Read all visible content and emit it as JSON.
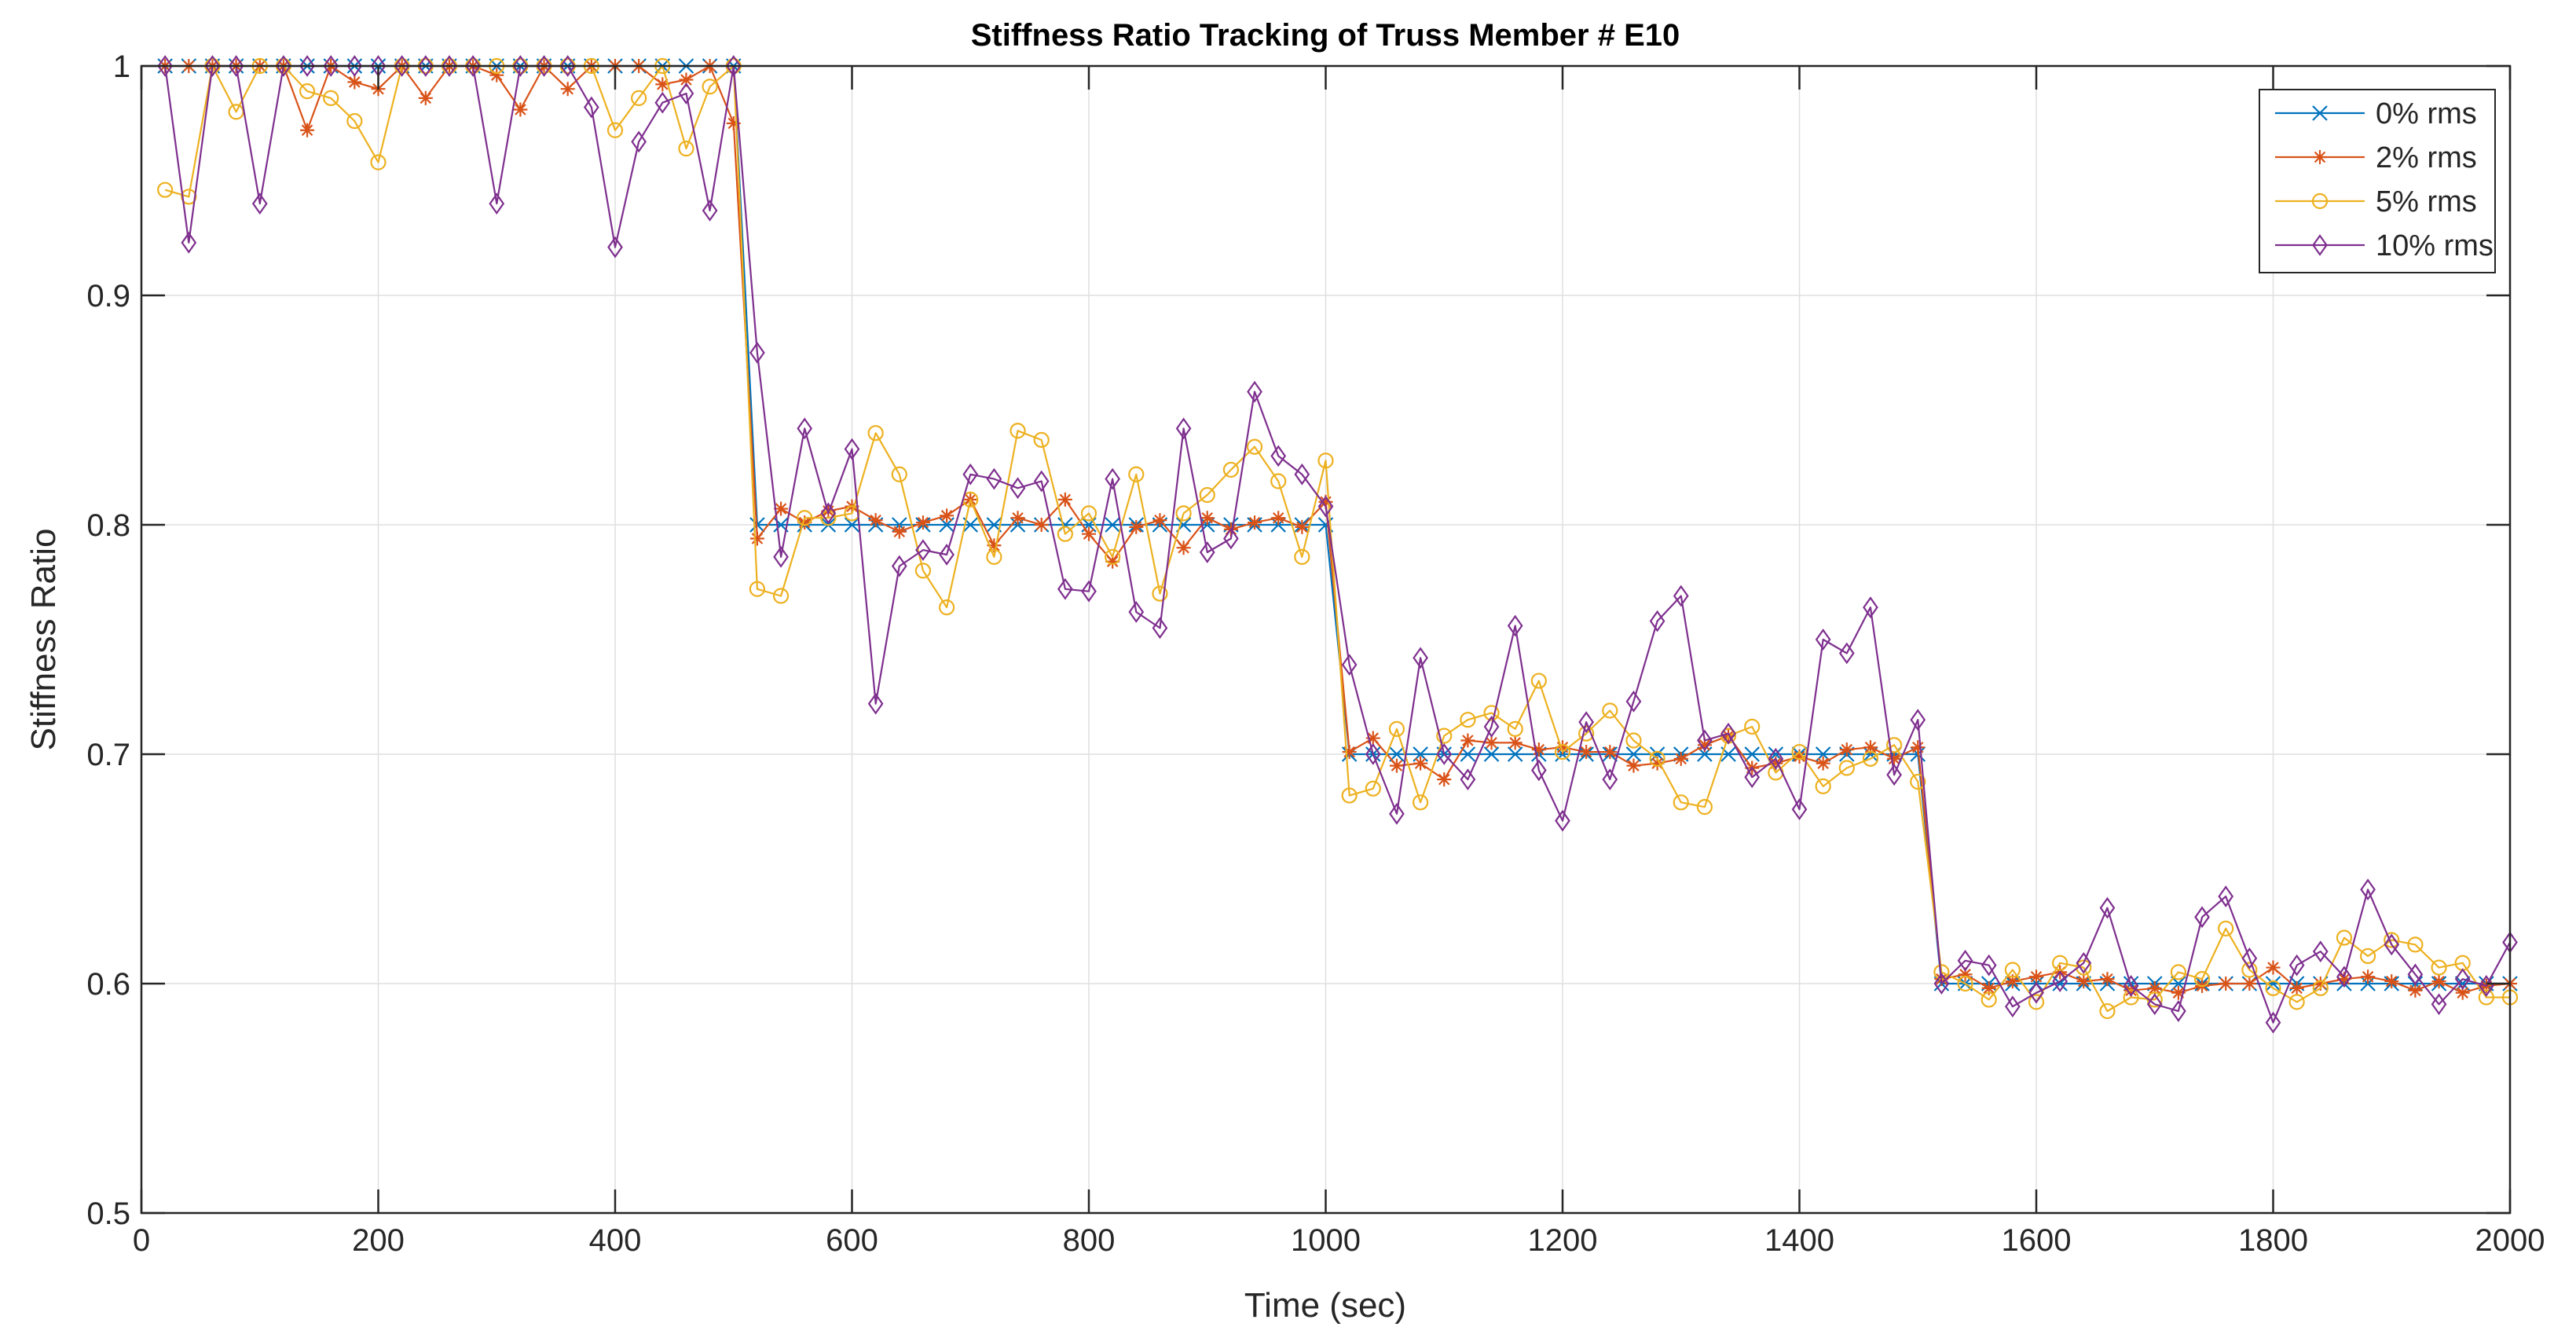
{
  "chart_data": {
    "type": "line",
    "title": "Stiffness Ratio Tracking of Truss Member # E10",
    "xlabel": "Time (sec)",
    "ylabel": "Stiffness Ratio",
    "xlim": [
      0,
      2000
    ],
    "ylim": [
      0.5,
      1.0
    ],
    "xticks": [
      0,
      200,
      400,
      600,
      800,
      1000,
      1200,
      1400,
      1600,
      1800,
      2000
    ],
    "yticks": [
      0.5,
      0.6,
      0.7,
      0.8,
      0.9,
      1.0
    ],
    "xtick_labels": [
      "0",
      "200",
      "400",
      "600",
      "800",
      "1000",
      "1200",
      "1400",
      "1600",
      "1800",
      "2000"
    ],
    "ytick_labels": [
      "0.5",
      "0.6",
      "0.7",
      "0.8",
      "0.9",
      "1"
    ],
    "grid": true,
    "legend_position": "top-right",
    "x": [
      20,
      40,
      60,
      80,
      100,
      120,
      140,
      160,
      180,
      200,
      220,
      240,
      260,
      280,
      300,
      320,
      340,
      360,
      380,
      400,
      420,
      440,
      460,
      480,
      500,
      520,
      540,
      560,
      580,
      600,
      620,
      640,
      660,
      680,
      700,
      720,
      740,
      760,
      780,
      800,
      820,
      840,
      860,
      880,
      900,
      920,
      940,
      960,
      980,
      1000,
      1020,
      1040,
      1060,
      1080,
      1100,
      1120,
      1140,
      1160,
      1180,
      1200,
      1220,
      1240,
      1260,
      1280,
      1300,
      1320,
      1340,
      1360,
      1380,
      1400,
      1420,
      1440,
      1460,
      1480,
      1500,
      1520,
      1540,
      1560,
      1580,
      1600,
      1620,
      1640,
      1660,
      1680,
      1700,
      1720,
      1740,
      1760,
      1780,
      1800,
      1820,
      1840,
      1860,
      1880,
      1900,
      1920,
      1940,
      1960,
      1980,
      2000
    ],
    "series": [
      {
        "name": "0% rms",
        "color": "#0072BD",
        "marker": "x",
        "values": [
          1,
          1,
          1,
          1,
          1,
          1,
          1,
          1,
          1,
          1,
          1,
          1,
          1,
          1,
          1,
          1,
          1,
          1,
          1,
          1,
          1,
          1,
          1,
          1,
          1,
          0.8,
          0.8,
          0.8,
          0.8,
          0.8,
          0.8,
          0.8,
          0.8,
          0.8,
          0.8,
          0.8,
          0.8,
          0.8,
          0.8,
          0.8,
          0.8,
          0.8,
          0.8,
          0.8,
          0.8,
          0.8,
          0.8,
          0.8,
          0.8,
          0.8,
          0.7,
          0.7,
          0.7,
          0.7,
          0.7,
          0.7,
          0.7,
          0.7,
          0.7,
          0.7,
          0.7,
          0.7,
          0.7,
          0.7,
          0.7,
          0.7,
          0.7,
          0.7,
          0.7,
          0.7,
          0.7,
          0.7,
          0.7,
          0.7,
          0.7,
          0.6,
          0.6,
          0.6,
          0.6,
          0.6,
          0.6,
          0.6,
          0.6,
          0.6,
          0.6,
          0.6,
          0.6,
          0.6,
          0.6,
          0.6,
          0.6,
          0.6,
          0.6,
          0.6,
          0.6,
          0.6,
          0.6,
          0.6,
          0.6,
          0.6
        ]
      },
      {
        "name": "2% rms",
        "color": "#D95319",
        "marker": "*",
        "values": [
          1,
          1,
          1,
          1,
          1,
          1,
          0.972,
          1,
          0.993,
          0.99,
          1,
          0.986,
          1,
          1,
          0.996,
          0.981,
          1,
          0.99,
          1,
          1,
          1,
          0.992,
          0.994,
          1,
          0.975,
          0.794,
          0.807,
          0.801,
          0.806,
          0.808,
          0.802,
          0.797,
          0.801,
          0.804,
          0.811,
          0.791,
          0.803,
          0.8,
          0.811,
          0.796,
          0.784,
          0.799,
          0.802,
          0.79,
          0.803,
          0.798,
          0.801,
          0.803,
          0.799,
          0.81,
          0.701,
          0.707,
          0.695,
          0.696,
          0.689,
          0.706,
          0.705,
          0.705,
          0.702,
          0.703,
          0.701,
          0.701,
          0.695,
          0.696,
          0.698,
          0.704,
          0.708,
          0.694,
          0.696,
          0.699,
          0.696,
          0.702,
          0.703,
          0.698,
          0.703,
          0.602,
          0.604,
          0.598,
          0.601,
          0.603,
          0.605,
          0.601,
          0.602,
          0.597,
          0.598,
          0.596,
          0.599,
          0.6,
          0.6,
          0.607,
          0.598,
          0.6,
          0.602,
          0.603,
          0.601,
          0.597,
          0.601,
          0.596,
          0.599,
          0.6
        ]
      },
      {
        "name": "5% rms",
        "color": "#EDB120",
        "marker": "o",
        "values": [
          0.946,
          0.943,
          1,
          0.98,
          1,
          1,
          0.989,
          0.986,
          0.976,
          0.958,
          1,
          1,
          1,
          1,
          1,
          1,
          1,
          1,
          1,
          0.972,
          0.986,
          1,
          0.964,
          0.991,
          1,
          0.772,
          0.769,
          0.803,
          0.803,
          0.805,
          0.84,
          0.822,
          0.78,
          0.764,
          0.811,
          0.786,
          0.841,
          0.837,
          0.796,
          0.805,
          0.786,
          0.822,
          0.77,
          0.805,
          0.813,
          0.824,
          0.834,
          0.819,
          0.786,
          0.828,
          0.682,
          0.685,
          0.711,
          0.679,
          0.708,
          0.715,
          0.718,
          0.711,
          0.732,
          0.701,
          0.709,
          0.719,
          0.706,
          0.698,
          0.679,
          0.677,
          0.708,
          0.712,
          0.692,
          0.701,
          0.686,
          0.694,
          0.698,
          0.704,
          0.688,
          0.605,
          0.6,
          0.593,
          0.606,
          0.592,
          0.609,
          0.607,
          0.588,
          0.594,
          0.593,
          0.605,
          0.602,
          0.624,
          0.606,
          0.598,
          0.592,
          0.598,
          0.62,
          0.612,
          0.619,
          0.617,
          0.607,
          0.609,
          0.594,
          0.594
        ]
      },
      {
        "name": "10% rms",
        "color": "#7E2F8E",
        "marker": "diamond",
        "values": [
          1,
          0.923,
          1,
          1,
          0.94,
          1,
          1,
          1,
          1,
          1,
          1,
          1,
          1,
          1,
          0.94,
          1,
          1,
          1,
          0.982,
          0.921,
          0.967,
          0.984,
          0.988,
          0.937,
          1,
          0.875,
          0.786,
          0.842,
          0.805,
          0.833,
          0.722,
          0.782,
          0.789,
          0.787,
          0.822,
          0.82,
          0.816,
          0.819,
          0.772,
          0.771,
          0.82,
          0.762,
          0.755,
          0.842,
          0.788,
          0.794,
          0.858,
          0.83,
          0.822,
          0.808,
          0.739,
          0.7,
          0.674,
          0.742,
          0.7,
          0.689,
          0.712,
          0.756,
          0.693,
          0.671,
          0.714,
          0.689,
          0.723,
          0.758,
          0.769,
          0.706,
          0.709,
          0.69,
          0.698,
          0.676,
          0.75,
          0.744,
          0.764,
          0.691,
          0.715,
          0.6,
          0.61,
          0.608,
          0.59,
          0.596,
          0.601,
          0.609,
          0.633,
          0.599,
          0.591,
          0.588,
          0.629,
          0.638,
          0.611,
          0.583,
          0.608,
          0.614,
          0.603,
          0.641,
          0.617,
          0.604,
          0.591,
          0.602,
          0.599,
          0.618
        ]
      }
    ]
  }
}
